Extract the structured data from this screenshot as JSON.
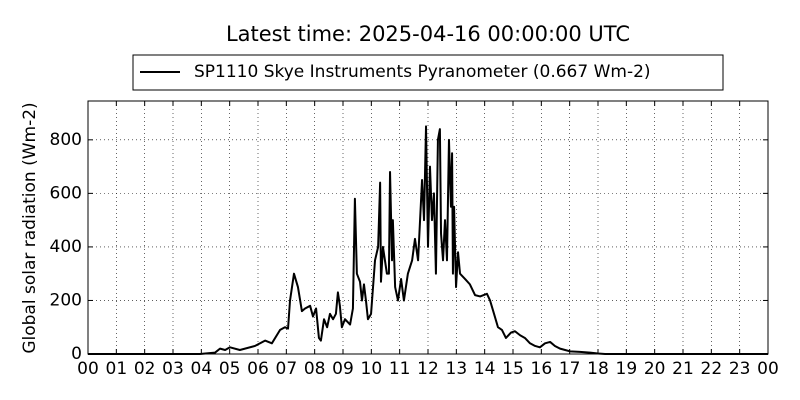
{
  "chart_data": {
    "type": "line",
    "title": "Latest time: 2025-04-16 00:00:00 UTC",
    "y_label": "Global solar radiation (Wm-2)",
    "grid": true,
    "xlim": [
      0,
      24
    ],
    "xticks": [
      {
        "value": 0,
        "label": "00"
      },
      {
        "value": 1,
        "label": "01"
      },
      {
        "value": 2,
        "label": "02"
      },
      {
        "value": 3,
        "label": "03"
      },
      {
        "value": 4,
        "label": "04"
      },
      {
        "value": 5,
        "label": "05"
      },
      {
        "value": 6,
        "label": "06"
      },
      {
        "value": 7,
        "label": "07"
      },
      {
        "value": 8,
        "label": "08"
      },
      {
        "value": 9,
        "label": "09"
      },
      10,
      11,
      12,
      13,
      14,
      15,
      16,
      17,
      18,
      19,
      20,
      21,
      22,
      23,
      {
        "value": 24,
        "label": "00"
      }
    ],
    "ylim": [
      0,
      945
    ],
    "yticks": [
      0,
      200,
      400,
      600,
      800
    ],
    "x": [
      0,
      3.95,
      4.48,
      4.66,
      4.84,
      5.01,
      5.36,
      5.89,
      6.25,
      6.49,
      6.78,
      6.95,
      7.06,
      7.13,
      7.27,
      7.41,
      7.55,
      7.66,
      7.84,
      7.94,
      8.05,
      8.15,
      8.22,
      8.33,
      8.44,
      8.54,
      8.65,
      8.75,
      8.82,
      8.89,
      8.96,
      9.07,
      9.25,
      9.35,
      9.42,
      9.49,
      9.6,
      9.67,
      9.74,
      9.81,
      9.88,
      9.99,
      10.13,
      10.24,
      10.31,
      10.34,
      10.41,
      10.48,
      10.55,
      10.62,
      10.66,
      10.73,
      10.76,
      10.84,
      10.94,
      11.05,
      11.15,
      11.29,
      11.44,
      11.54,
      11.65,
      11.79,
      11.86,
      11.93,
      12.0,
      12.07,
      12.14,
      12.21,
      12.28,
      12.35,
      12.42,
      12.46,
      12.53,
      12.6,
      12.67,
      12.74,
      12.81,
      12.85,
      12.88,
      12.92,
      12.99,
      13.06,
      13.13,
      13.31,
      13.48,
      13.66,
      13.84,
      14.08,
      14.19,
      14.33,
      14.47,
      14.61,
      14.75,
      14.93,
      15.07,
      15.25,
      15.42,
      15.6,
      15.78,
      15.95,
      16.13,
      16.31,
      16.48,
      16.66,
      16.84,
      17.01,
      17.36,
      17.72,
      18.0,
      18.25,
      24
    ],
    "series": [
      {
        "name": "SP1110 Skye Instruments Pyranometer (0.667 Wm-2)",
        "color": "#000000",
        "values": [
          0,
          0,
          5,
          20,
          15,
          25,
          15,
          30,
          50,
          40,
          90,
          100,
          95,
          200,
          300,
          250,
          160,
          170,
          180,
          140,
          170,
          60,
          50,
          130,
          100,
          150,
          130,
          150,
          230,
          180,
          100,
          130,
          110,
          170,
          580,
          300,
          270,
          200,
          260,
          200,
          130,
          150,
          350,
          400,
          640,
          270,
          400,
          350,
          300,
          300,
          680,
          350,
          500,
          250,
          200,
          280,
          200,
          300,
          350,
          430,
          350,
          650,
          500,
          850,
          400,
          700,
          500,
          600,
          300,
          800,
          840,
          450,
          350,
          500,
          350,
          800,
          550,
          750,
          300,
          550,
          250,
          380,
          300,
          280,
          260,
          220,
          215,
          225,
          200,
          150,
          100,
          90,
          60,
          80,
          85,
          70,
          60,
          40,
          30,
          25,
          40,
          45,
          30,
          20,
          15,
          10,
          8,
          5,
          2,
          0,
          0
        ]
      }
    ]
  }
}
